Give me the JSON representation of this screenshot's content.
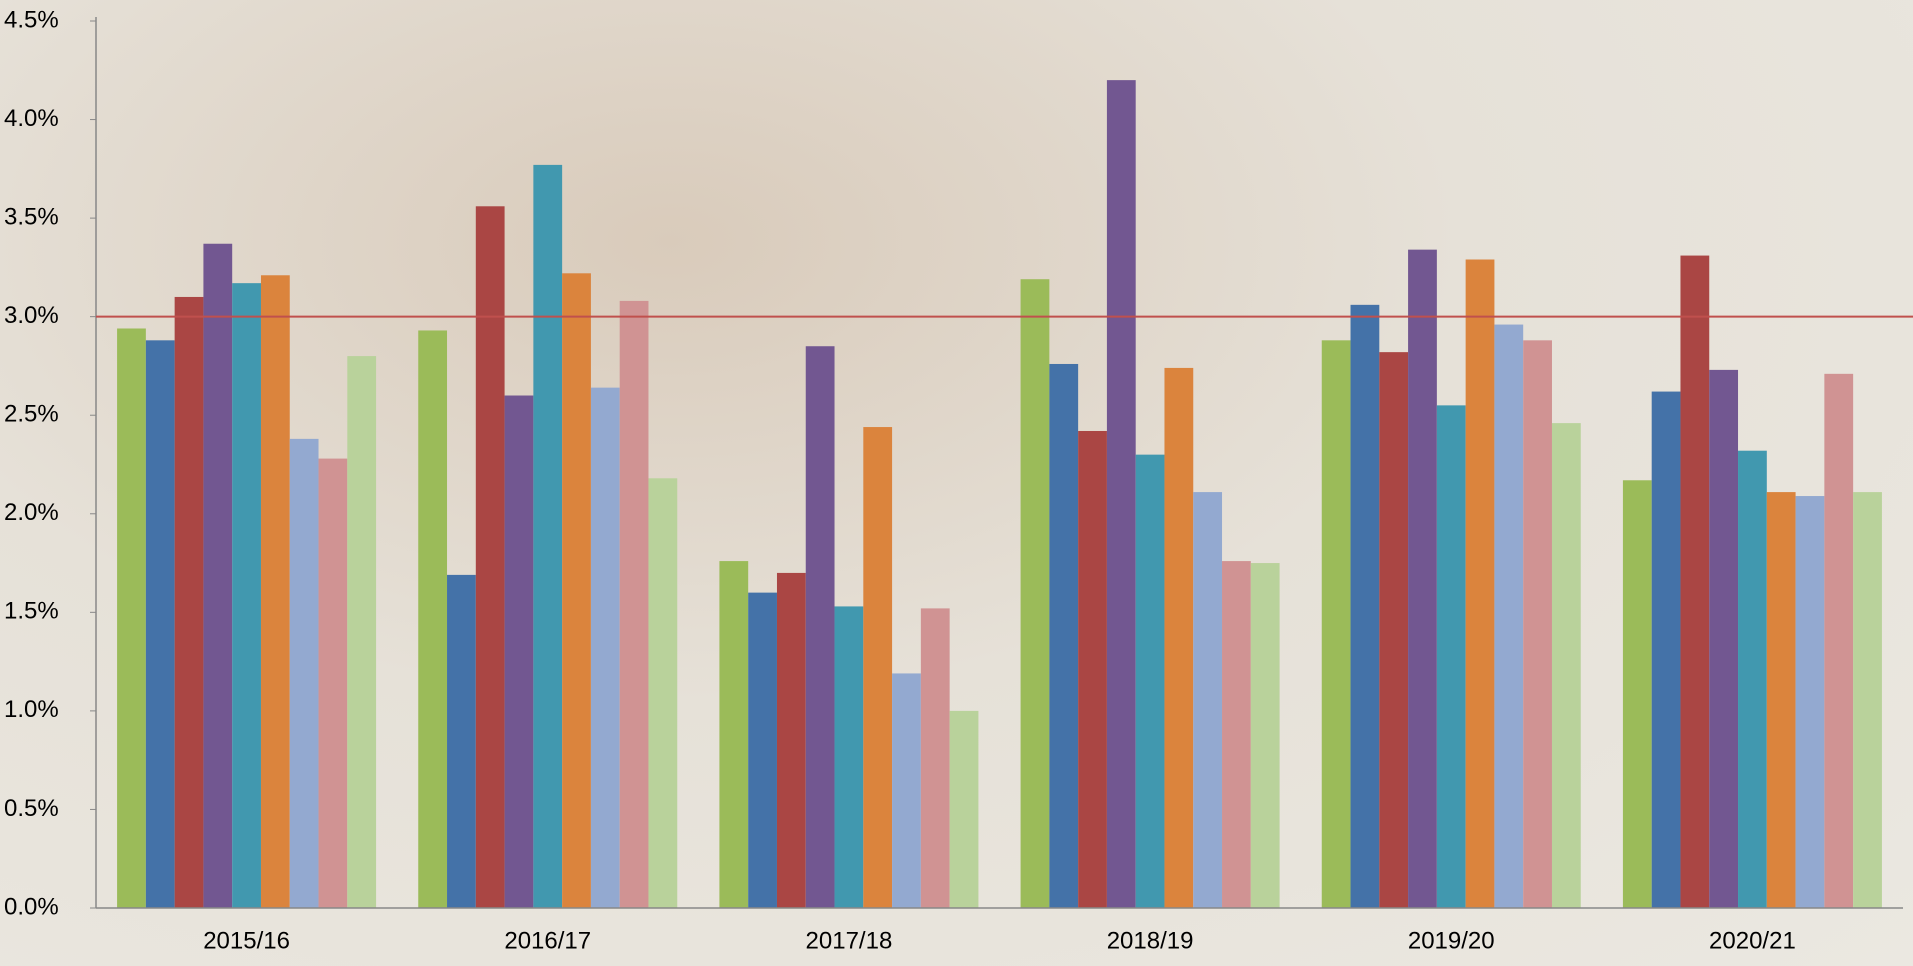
{
  "chart_data": {
    "type": "bar",
    "categories": [
      "2015/16",
      "2016/17",
      "2017/18",
      "2018/19",
      "2019/20",
      "2020/21"
    ],
    "series": [
      {
        "color": "#9bbb59",
        "values": [
          2.94,
          2.93,
          1.76,
          3.19,
          2.88,
          2.17
        ]
      },
      {
        "color": "#4472a8",
        "values": [
          2.88,
          1.69,
          1.6,
          2.76,
          3.06,
          2.62
        ]
      },
      {
        "color": "#aa4644",
        "values": [
          3.1,
          3.56,
          1.7,
          2.42,
          2.82,
          3.31
        ]
      },
      {
        "color": "#725791",
        "values": [
          3.37,
          2.6,
          2.85,
          4.2,
          3.34,
          2.73
        ]
      },
      {
        "color": "#4198af",
        "values": [
          3.17,
          3.77,
          1.53,
          2.3,
          2.55,
          2.32
        ]
      },
      {
        "color": "#db843d",
        "values": [
          3.21,
          3.22,
          2.44,
          2.74,
          3.29,
          2.11
        ]
      },
      {
        "color": "#93a9d0",
        "values": [
          2.38,
          2.64,
          1.19,
          2.11,
          2.96,
          2.09
        ]
      },
      {
        "color": "#d09393",
        "values": [
          2.28,
          3.08,
          1.52,
          1.76,
          2.88,
          2.71
        ]
      },
      {
        "color": "#b9d29b",
        "values": [
          2.8,
          2.18,
          1.0,
          1.75,
          2.46,
          2.11
        ]
      }
    ],
    "reference_line": {
      "value": 3.0,
      "color": "#c0504d"
    },
    "ylim": [
      0,
      4.5
    ],
    "yticks": [
      {
        "value": 0,
        "label": "0.0%"
      },
      {
        "value": 0.5,
        "label": "0.5%"
      },
      {
        "value": 1,
        "label": "1.0%"
      },
      {
        "value": 1.5,
        "label": "1.5%"
      },
      {
        "value": 2,
        "label": "2.0%"
      },
      {
        "value": 2.5,
        "label": "2.5%"
      },
      {
        "value": 3,
        "label": "3.0%"
      },
      {
        "value": 3.5,
        "label": "3.5%"
      },
      {
        "value": 4,
        "label": "4.0%"
      },
      {
        "value": 4.5,
        "label": "4.5%"
      }
    ],
    "grid": false
  }
}
